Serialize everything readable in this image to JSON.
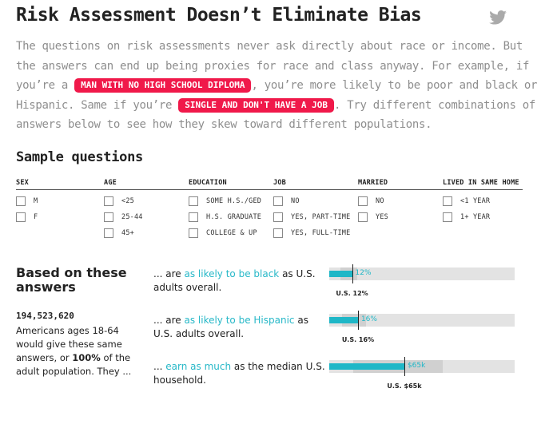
{
  "title": "Risk Assessment Doesn’t Eliminate Bias",
  "icons": {
    "share": "twitter-icon"
  },
  "intro": {
    "p1": "The questions on risk assessments never ask directly about race or income. But the answers can end up being proxies for race and class anyway. For example, if you’re a ",
    "pill1": "MAN WITH NO HIGH SCHOOL DIPLOMA",
    "p2": ", you’re more likely to be poor and black or Hispanic. Same if you’re ",
    "pill2": "SINGLE AND DON'T HAVE A JOB",
    "p3": ". Try different combinations of answers below to see how they skew toward different populations."
  },
  "sample": {
    "heading": "Sample questions",
    "columns": [
      {
        "label": "SEX",
        "options": [
          "M",
          "F"
        ]
      },
      {
        "label": "AGE",
        "options": [
          "<25",
          "25-44",
          "45+"
        ]
      },
      {
        "label": "EDUCATION",
        "options": [
          "SOME H.S./GED",
          "H.S. GRADUATE",
          "COLLEGE & UP"
        ]
      },
      {
        "label": "JOB",
        "options": [
          "NO",
          "YES, PART-TIME",
          "YES, FULL-TIME"
        ]
      },
      {
        "label": "MARRIED",
        "options": [
          "NO",
          "YES"
        ]
      },
      {
        "label": "LIVED IN SAME HOME",
        "options": [
          "<1 YEAR",
          "1+ YEAR"
        ]
      }
    ]
  },
  "based": {
    "heading": "Based on these answers",
    "count": "194,523,620",
    "desc_a": "Americans ages 18-64 would give these same answers, or ",
    "desc_pct": "100%",
    "desc_b": " of the adult population. They ..."
  },
  "stats": [
    {
      "pre": "... are ",
      "highlight": "as likely to be black",
      "post": " as U.S. adults overall.",
      "value_label": "12%",
      "ref_label": "U.S. 12%",
      "fill_fraction": 0.123,
      "band": [
        0.06,
        0.15
      ],
      "ref_fraction": 0.123
    },
    {
      "pre": "... are ",
      "highlight": "as likely to be Hispanic",
      "post": " as U.S. adults overall.",
      "value_label": "16%",
      "ref_label": "U.S. 16%",
      "fill_fraction": 0.155,
      "band": [
        0.07,
        0.2
      ],
      "ref_fraction": 0.155
    },
    {
      "pre": "... ",
      "highlight": "earn as much",
      "post": " as the median U.S. household.",
      "value_label": "$65k",
      "ref_label": "U.S. $65k",
      "fill_fraction": 0.405,
      "band": [
        0.13,
        0.61
      ],
      "ref_fraction": 0.405
    }
  ]
}
